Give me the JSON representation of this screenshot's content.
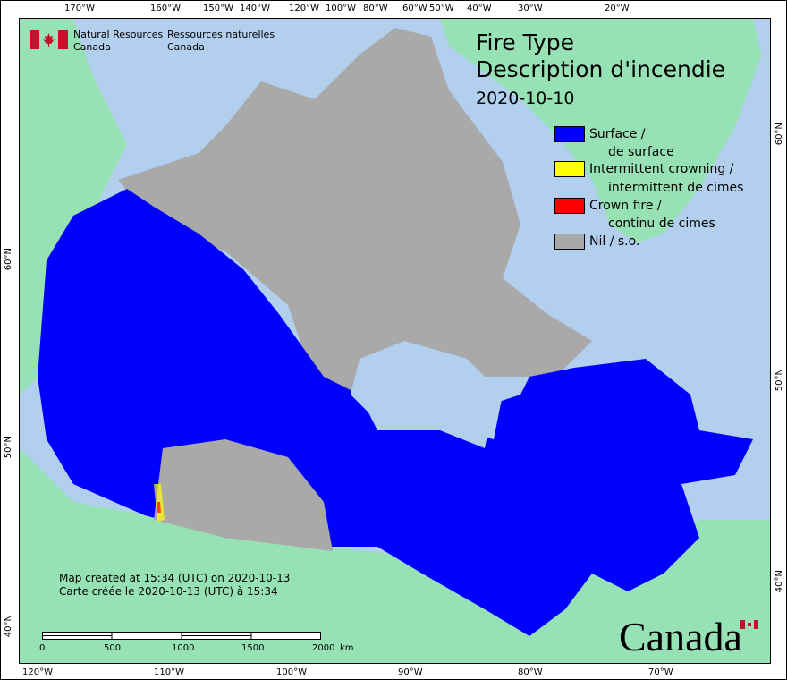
{
  "org": {
    "name_en": "Natural Resources",
    "name_en2": "Canada",
    "name_fr": "Ressources naturelles",
    "name_fr2": "Canada",
    "flag_icon": "canada-flag-icon"
  },
  "title": {
    "line1": "Fire Type",
    "line2": "Description d'incendie",
    "date": "2020-10-10"
  },
  "legend": [
    {
      "label1": "Surface /",
      "label2": "de surface",
      "color": "#0000ff"
    },
    {
      "label1": "Intermittent crowning /",
      "label2": "intermittent de cimes",
      "color": "#ffff00"
    },
    {
      "label1": "Crown fire /",
      "label2": "continu de cimes",
      "color": "#ff0000"
    },
    {
      "label1": "Nil / s.o.",
      "label2": "",
      "color": "#a9a9a9"
    }
  ],
  "colors": {
    "ocean": "#b3cfee",
    "foreign_land": "#96e2b4",
    "no_data_land": "#a9a9a9",
    "surface": "#0000ff"
  },
  "axes": {
    "top": [
      "170°W",
      "160°W",
      "150°W",
      "140°W",
      "120°W",
      "100°W",
      "80°W",
      "60°W",
      "50°W",
      "40°W",
      "30°W",
      "20°W"
    ],
    "bottom": [
      "120°W",
      "110°W",
      "100°W",
      "90°W",
      "80°W",
      "70°W"
    ],
    "left": [
      "60°N",
      "50°N",
      "40°N"
    ],
    "right": [
      "60°N",
      "50°N",
      "40°N"
    ]
  },
  "notes": {
    "en": "Map created at 15:34 (UTC) on 2020-10-13",
    "fr": "Carte créée le 2020-10-13 (UTC) à 15:34"
  },
  "scalebar": {
    "labels": [
      "0",
      "500",
      "1000",
      "1500",
      "2000"
    ],
    "unit": "km"
  },
  "wordmark": "Canada"
}
